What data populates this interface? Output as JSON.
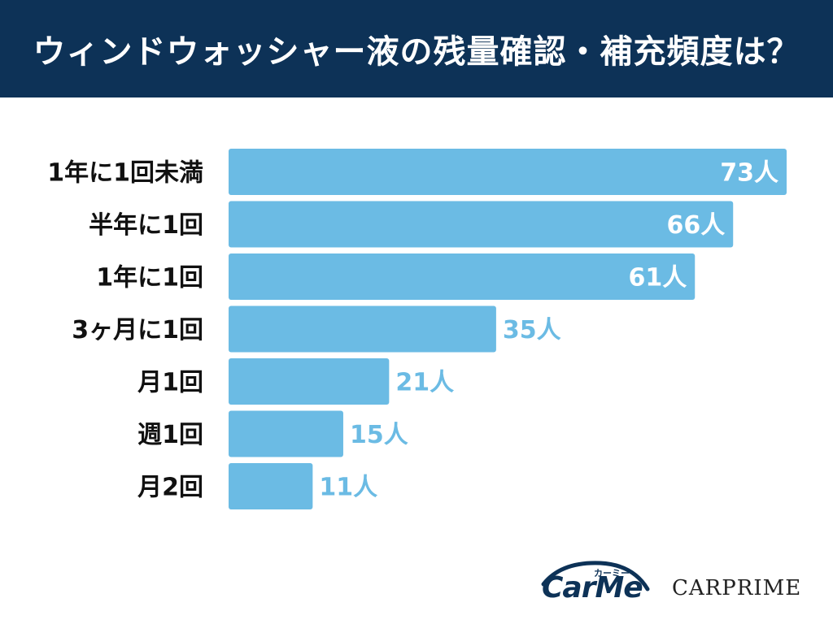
{
  "header": {
    "title": "ウィンドウォッシャー液の残量確認・補充頻度は？",
    "background_color": "#0d3257"
  },
  "chart_data": {
    "type": "bar",
    "orientation": "horizontal",
    "title": "ウィンドウォッシャー液の残量確認・補充頻度は？",
    "categories": [
      "1年に1回未満",
      "半年に1回",
      "1年に1回",
      "3ヶ月に1回",
      "月1回",
      "週1回",
      "月2回"
    ],
    "values": [
      73,
      66,
      61,
      35,
      21,
      15,
      11
    ],
    "value_labels": [
      "73人",
      "66人",
      "61人",
      "35人",
      "21人",
      "15人",
      "11人"
    ],
    "unit": "人",
    "bar_color": "#6bbbe4",
    "label_inside_color": "#ffffff",
    "label_outside_color": "#6bbbe4",
    "xlim": [
      0,
      73
    ],
    "grid": false,
    "legend": "none"
  },
  "logos": {
    "carme": {
      "text": "CarMe",
      "kana": "カーミー",
      "color": "#0d3257"
    },
    "carprime": {
      "text": "CARPRIME"
    }
  }
}
